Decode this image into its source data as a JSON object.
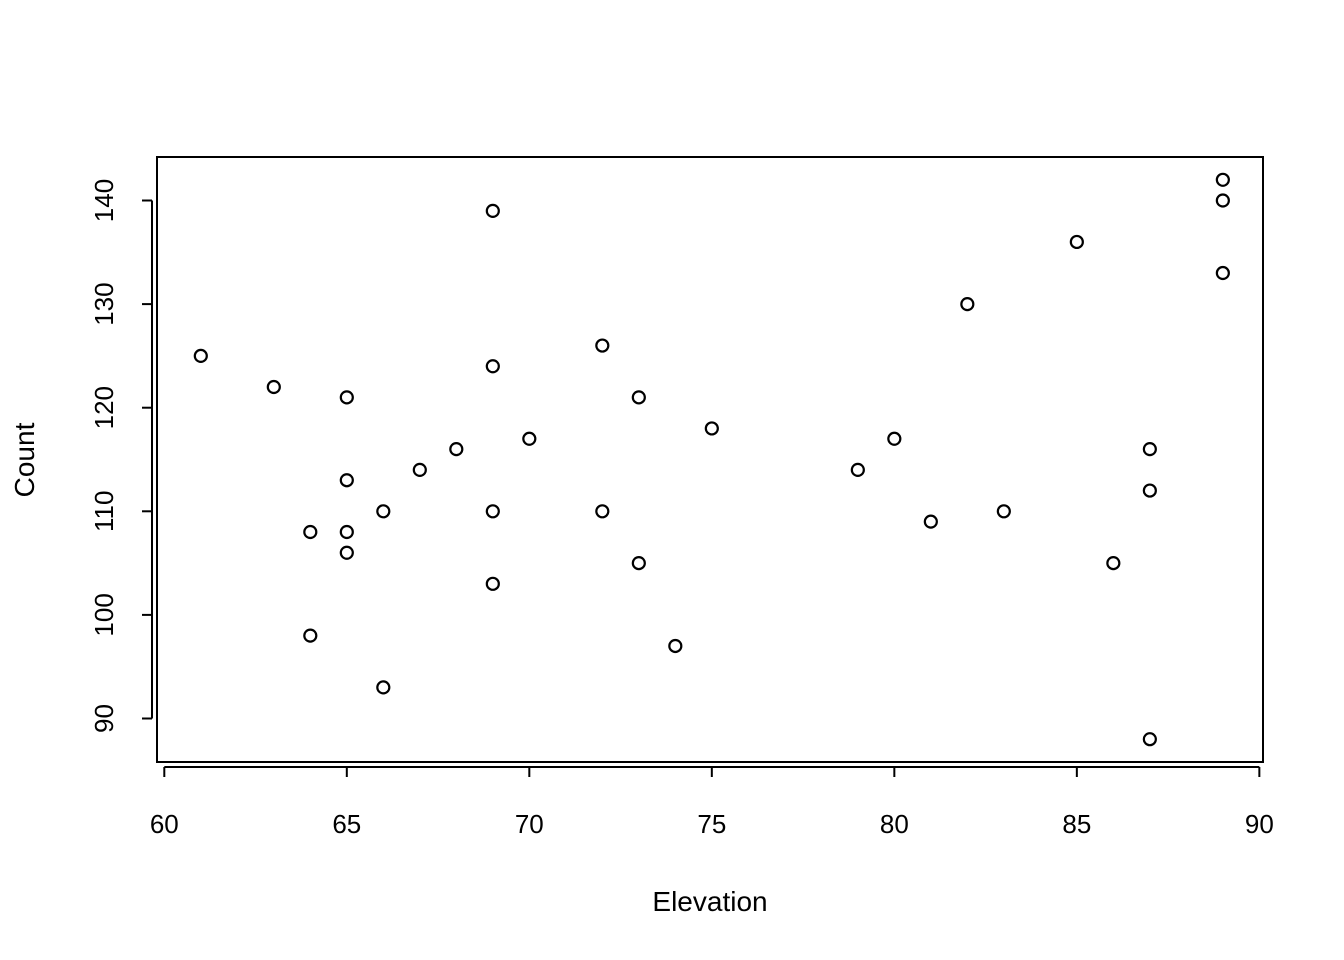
{
  "chart_data": {
    "type": "scatter",
    "title": "",
    "xlabel": "Elevation",
    "ylabel": "Count",
    "xlim": [
      59.8,
      90.1
    ],
    "ylim": [
      85.8,
      144.2
    ],
    "xticks": [
      60,
      65,
      70,
      75,
      80,
      85,
      90
    ],
    "yticks": [
      90,
      100,
      110,
      120,
      130,
      140
    ],
    "xtick_labels": [
      "60",
      "65",
      "70",
      "75",
      "80",
      "85",
      "90"
    ],
    "ytick_labels": [
      "90",
      "100",
      "110",
      "120",
      "130",
      "140"
    ],
    "grid": false,
    "marker": "open-circle",
    "points": [
      {
        "x": 61,
        "y": 125
      },
      {
        "x": 63,
        "y": 122
      },
      {
        "x": 64,
        "y": 108
      },
      {
        "x": 64,
        "y": 98
      },
      {
        "x": 65,
        "y": 121
      },
      {
        "x": 65,
        "y": 113
      },
      {
        "x": 65,
        "y": 108
      },
      {
        "x": 65,
        "y": 106
      },
      {
        "x": 66,
        "y": 110
      },
      {
        "x": 66,
        "y": 93
      },
      {
        "x": 67,
        "y": 114
      },
      {
        "x": 68,
        "y": 116
      },
      {
        "x": 69,
        "y": 139
      },
      {
        "x": 69,
        "y": 124
      },
      {
        "x": 69,
        "y": 110
      },
      {
        "x": 69,
        "y": 103
      },
      {
        "x": 70,
        "y": 117
      },
      {
        "x": 72,
        "y": 126
      },
      {
        "x": 72,
        "y": 110
      },
      {
        "x": 73,
        "y": 121
      },
      {
        "x": 73,
        "y": 105
      },
      {
        "x": 74,
        "y": 97
      },
      {
        "x": 75,
        "y": 118
      },
      {
        "x": 79,
        "y": 114
      },
      {
        "x": 80,
        "y": 117
      },
      {
        "x": 81,
        "y": 109
      },
      {
        "x": 82,
        "y": 130
      },
      {
        "x": 83,
        "y": 110
      },
      {
        "x": 85,
        "y": 136
      },
      {
        "x": 86,
        "y": 105
      },
      {
        "x": 87,
        "y": 116
      },
      {
        "x": 87,
        "y": 112
      },
      {
        "x": 87,
        "y": 88
      },
      {
        "x": 89,
        "y": 142
      },
      {
        "x": 89,
        "y": 140
      },
      {
        "x": 89,
        "y": 133
      }
    ]
  }
}
